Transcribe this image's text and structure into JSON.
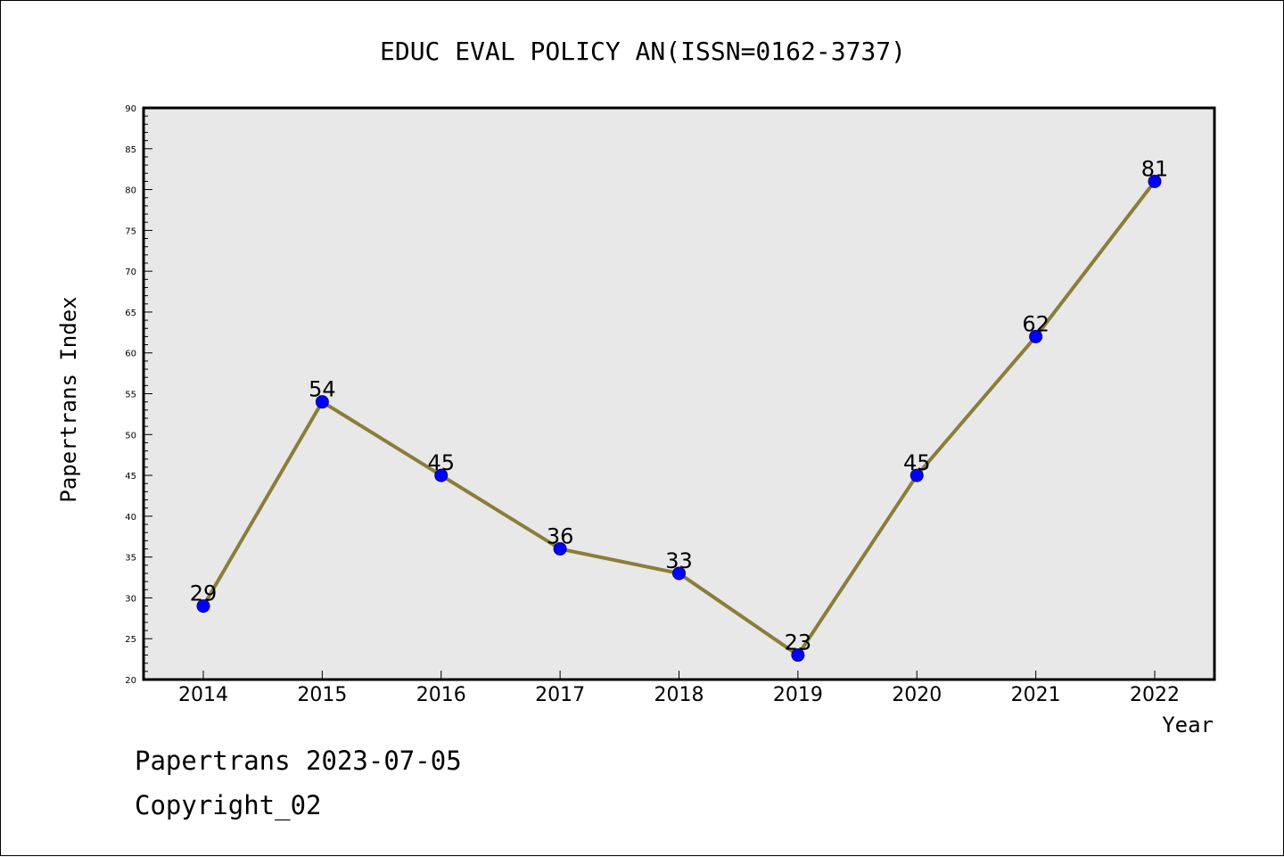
{
  "chart_data": {
    "type": "line",
    "title": "EDUC EVAL POLICY AN(ISSN=0162-3737)",
    "xlabel": "Year",
    "ylabel": "Papertrans Index",
    "categories": [
      "2014",
      "2015",
      "2016",
      "2017",
      "2018",
      "2019",
      "2020",
      "2021",
      "2022"
    ],
    "values": [
      29,
      54,
      45,
      36,
      33,
      23,
      45,
      62,
      81
    ],
    "data_labels": [
      "29",
      "54",
      "45",
      "36",
      "33",
      "23",
      "45",
      "62",
      "81"
    ],
    "ylim": [
      20,
      90
    ],
    "y_ticks": [
      20,
      25,
      30,
      35,
      40,
      45,
      50,
      55,
      60,
      65,
      70,
      75,
      80,
      85,
      90
    ],
    "y_tick_labels": [
      "20",
      "25",
      "30",
      "35",
      "40",
      "45",
      "50",
      "55",
      "60",
      "65",
      "70",
      "75",
      "80",
      "85",
      "90"
    ],
    "grid": false,
    "colors": {
      "line": "#8b7d3a",
      "marker": "#0000ff",
      "marker_edge": "#00008b",
      "plot_background": "#e8e8e8"
    }
  },
  "footer": {
    "source": "Papertrans 2023-07-05",
    "copyright": "Copyright_02"
  }
}
